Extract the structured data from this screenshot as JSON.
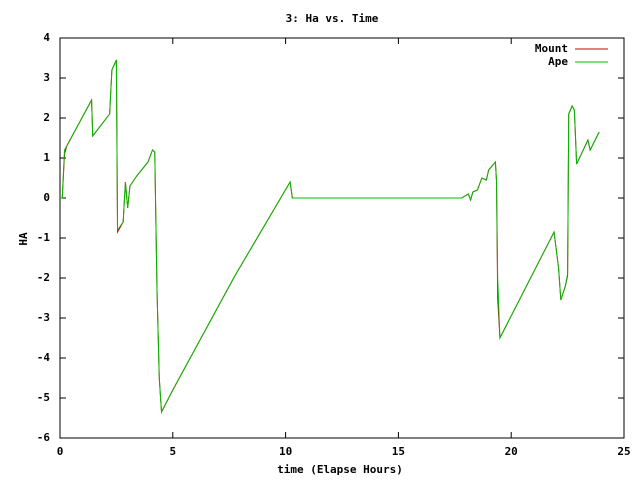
{
  "chart_data": {
    "type": "line",
    "title": "3: Ha vs. Time",
    "x_label": "time (Elapse Hours)",
    "y_label": "HA",
    "x": [
      0.0,
      0.1,
      0.2,
      0.3,
      1.4,
      1.45,
      2.2,
      2.3,
      2.5,
      2.55,
      2.8,
      2.9,
      3.0,
      3.1,
      3.4,
      3.9,
      4.1,
      4.2,
      4.3,
      4.4,
      4.5,
      5.0,
      7.7,
      7.8,
      10.2,
      10.3,
      17.8,
      18.1,
      18.2,
      18.3,
      18.5,
      18.7,
      18.9,
      19.0,
      19.3,
      19.35,
      19.4,
      19.5,
      21.9,
      22.1,
      22.2,
      22.4,
      22.5,
      22.55,
      22.7,
      22.8,
      22.9,
      23.4,
      23.5,
      23.9
    ],
    "series": [
      {
        "name": "Mount",
        "color": "#cc0000",
        "values": [
          0.0,
          0.0,
          1.1,
          1.3,
          2.45,
          1.55,
          2.1,
          3.2,
          3.45,
          -0.85,
          -0.6,
          0.4,
          -0.25,
          0.3,
          0.55,
          0.9,
          1.2,
          1.15,
          -2.3,
          -4.5,
          -5.35,
          -4.8,
          -2.0,
          -1.9,
          0.4,
          0.0,
          0.0,
          0.1,
          -0.05,
          0.15,
          0.2,
          0.5,
          0.45,
          0.7,
          0.9,
          0.4,
          -2.5,
          -3.5,
          -0.85,
          -1.75,
          -2.55,
          -2.2,
          -1.95,
          2.1,
          2.3,
          2.2,
          0.85,
          1.45,
          1.2,
          1.65
        ]
      },
      {
        "name": "Ape",
        "color": "#00bb00",
        "values": [
          0.0,
          0.0,
          1.2,
          1.3,
          2.45,
          1.55,
          2.1,
          3.2,
          3.45,
          -0.8,
          -0.6,
          0.4,
          -0.25,
          0.3,
          0.55,
          0.9,
          1.2,
          1.15,
          -2.3,
          -4.5,
          -5.35,
          -4.8,
          -2.0,
          -1.9,
          0.4,
          0.0,
          0.0,
          0.1,
          -0.05,
          0.15,
          0.2,
          0.5,
          0.45,
          0.7,
          0.9,
          0.4,
          -2.0,
          -3.5,
          -0.85,
          -1.75,
          -2.55,
          -2.2,
          -1.9,
          2.1,
          2.3,
          2.2,
          0.85,
          1.45,
          1.2,
          1.65
        ]
      }
    ],
    "xlim": [
      0,
      25
    ],
    "xticks": [
      0,
      5,
      10,
      15,
      20,
      25
    ],
    "ylim": [
      -6,
      4
    ],
    "yticks": [
      -6,
      -5,
      -4,
      -3,
      -2,
      -1,
      0,
      1,
      2,
      3,
      4
    ],
    "grid": false,
    "legend": "top-right"
  }
}
